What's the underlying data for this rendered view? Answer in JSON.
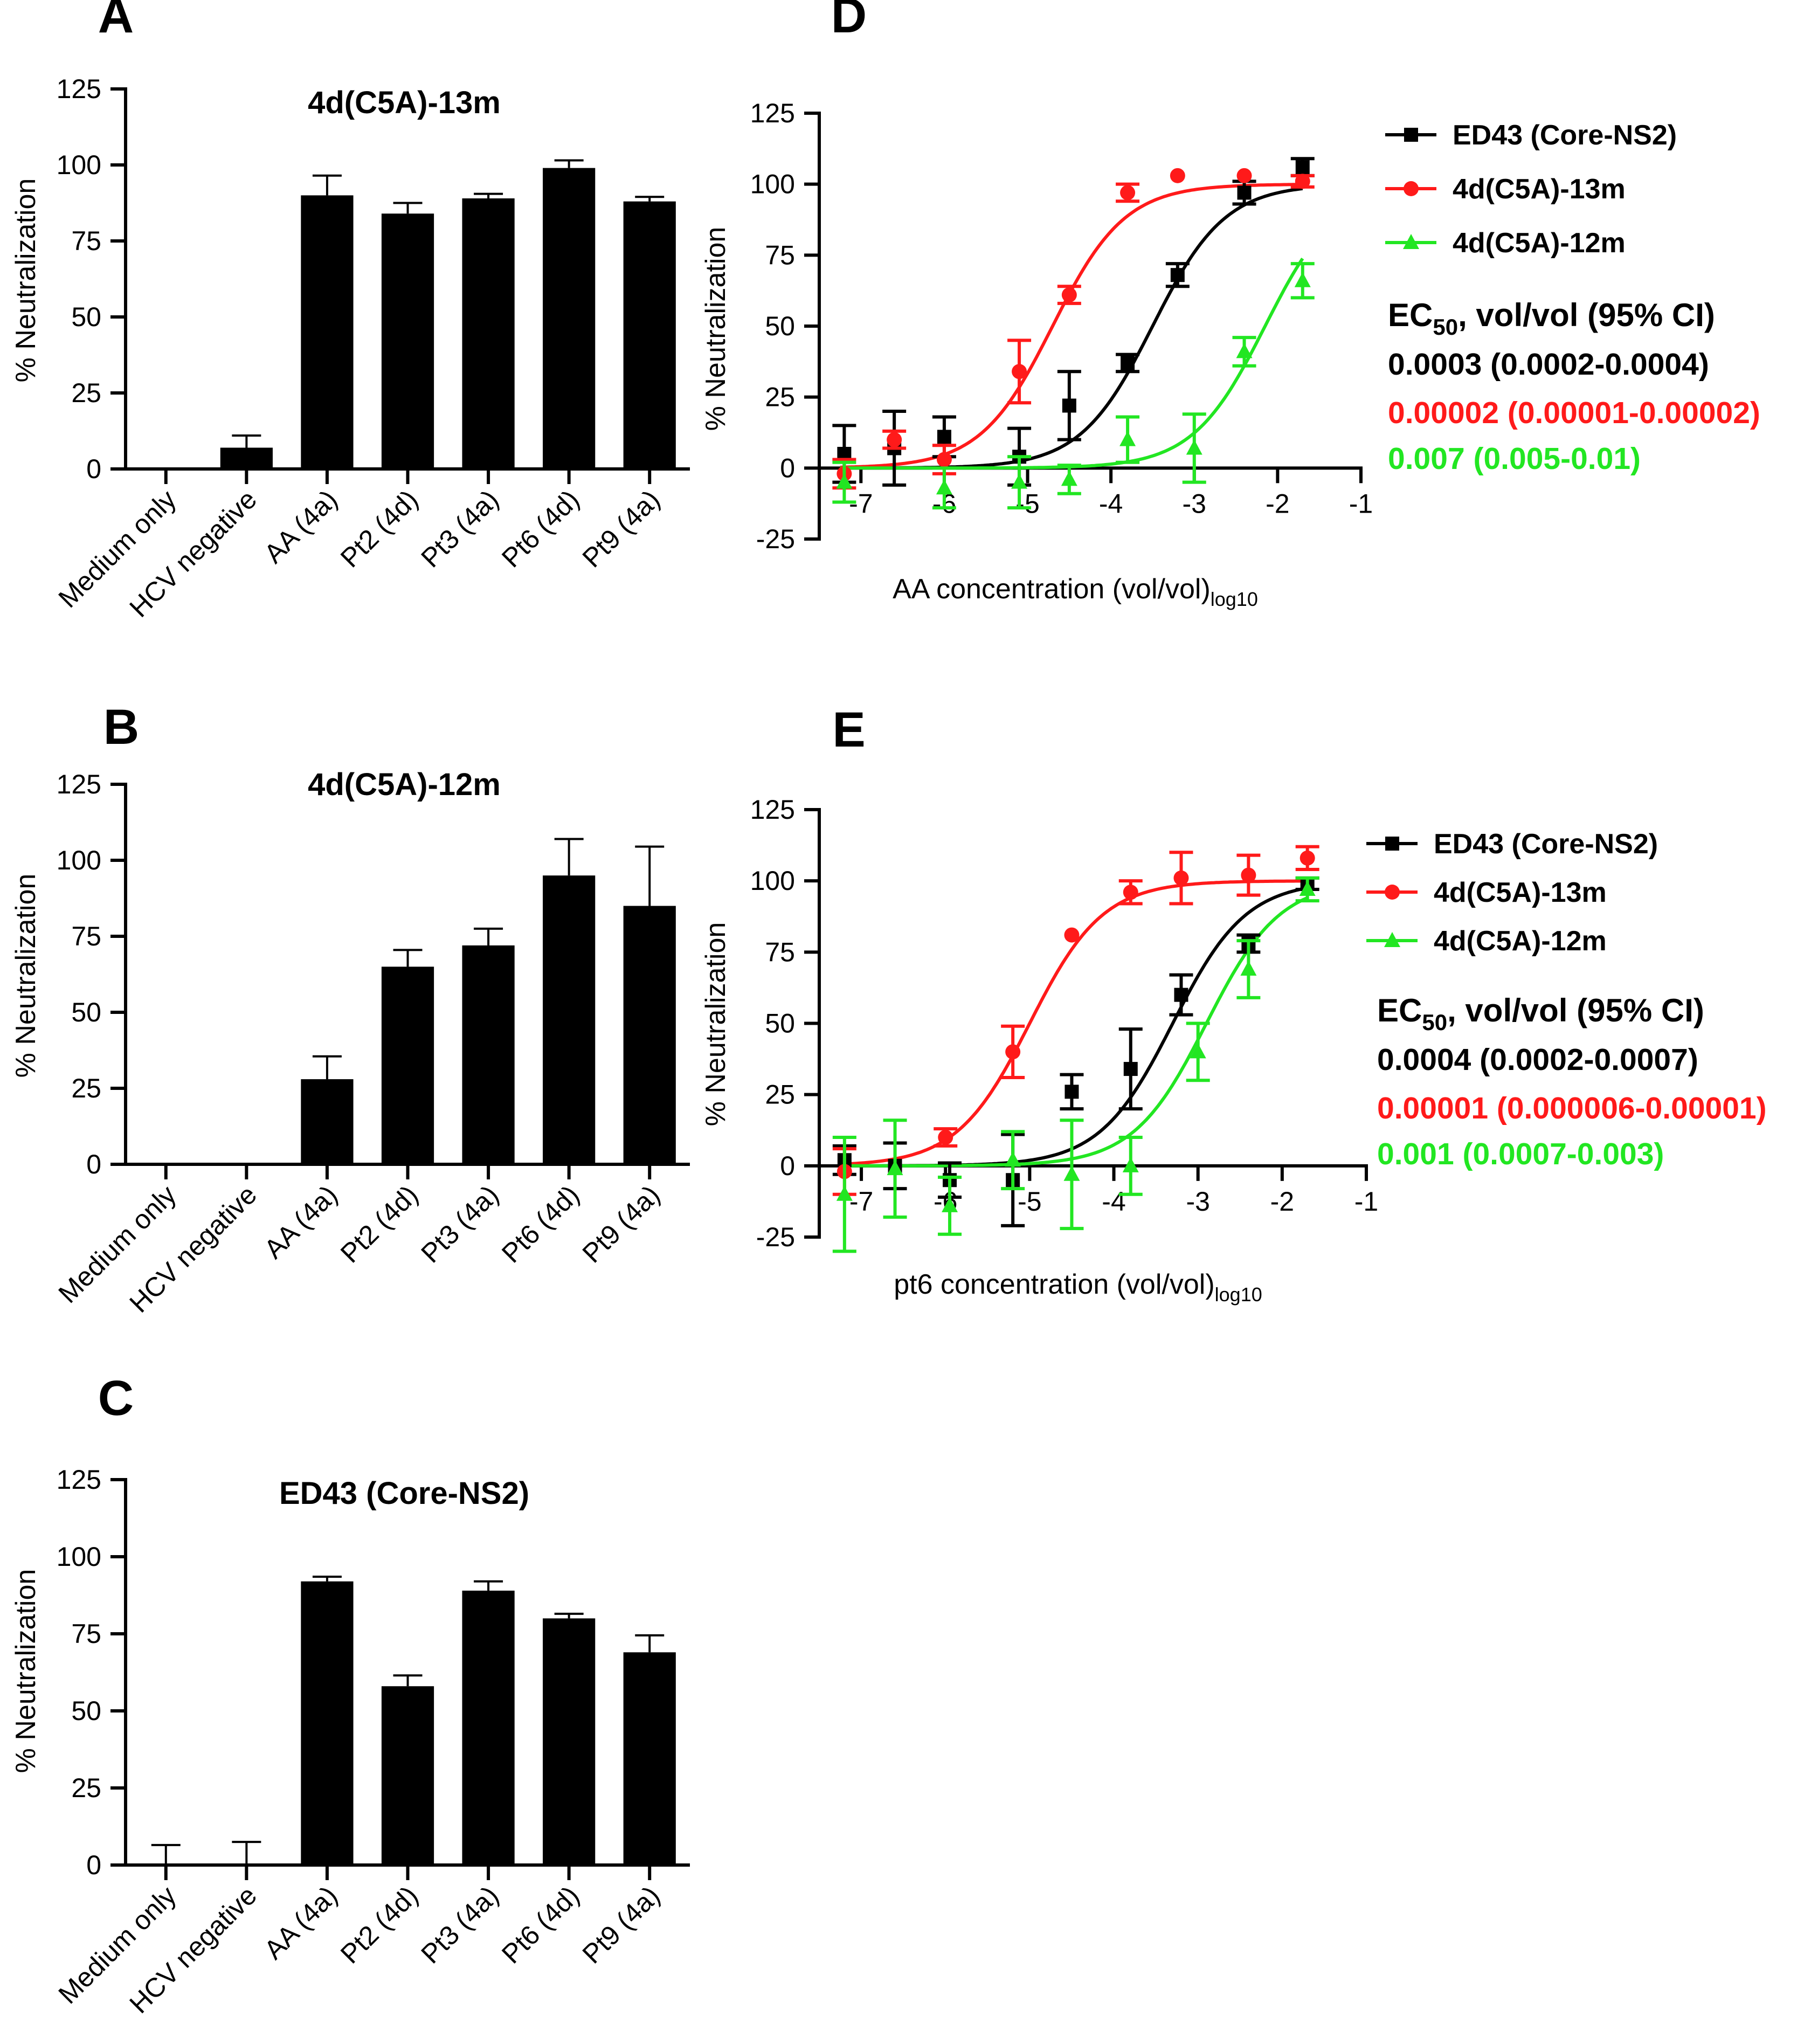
{
  "chart_data": [
    {
      "id": "A",
      "panel_label": "A",
      "type": "bar",
      "title": "4d(C5A)-13m",
      "ylabel": "% Neutralization",
      "ylim": [
        0,
        125
      ],
      "yticks": [
        0,
        25,
        50,
        75,
        100,
        125
      ],
      "categories": [
        "Medium only",
        "HCV negative",
        "AA (4a)",
        "Pt2 (4d)",
        "Pt3 (4a)",
        "Pt6 (4d)",
        "Pt9 (4a)"
      ],
      "values": [
        0,
        7,
        90,
        84,
        89,
        99,
        88
      ],
      "errors": [
        0,
        4,
        6.5,
        3.5,
        1.5,
        2.5,
        1.5
      ]
    },
    {
      "id": "B",
      "panel_label": "B",
      "type": "bar",
      "title": "4d(C5A)-12m",
      "ylabel": "% Neutralization",
      "ylim": [
        0,
        125
      ],
      "yticks": [
        0,
        25,
        50,
        75,
        100,
        125
      ],
      "categories": [
        "Medium only",
        "HCV negative",
        "AA (4a)",
        "Pt2 (4d)",
        "Pt3 (4a)",
        "Pt6 (4d)",
        "Pt9 (4a)"
      ],
      "values": [
        0,
        0,
        28,
        65,
        72,
        95,
        85
      ],
      "errors": [
        0,
        0,
        7.5,
        5.5,
        5.5,
        12,
        19.5
      ]
    },
    {
      "id": "C",
      "panel_label": "C",
      "type": "bar",
      "title": "ED43 (Core-NS2)",
      "ylabel": "% Neutralization",
      "ylim": [
        0,
        125
      ],
      "yticks": [
        0,
        25,
        50,
        75,
        100,
        125
      ],
      "categories": [
        "Medium only",
        "HCV negative",
        "AA (4a)",
        "Pt2 (4d)",
        "Pt3 (4a)",
        "Pt6 (4d)",
        "Pt9 (4a)"
      ],
      "values": [
        0,
        0,
        92,
        58,
        89,
        80,
        69
      ],
      "errors": [
        6.5,
        7.5,
        1.5,
        3.5,
        3,
        1.5,
        5.5
      ]
    },
    {
      "id": "D",
      "panel_label": "D",
      "type": "scatter",
      "xlabel": "AA concentration (vol/vol)",
      "xlabel_sub": "log10",
      "ylabel": "% Neutralization",
      "xlim": [
        -7.5,
        -1
      ],
      "ylim": [
        -25,
        125
      ],
      "xticks": [
        -7,
        -6,
        -5,
        -4,
        -3,
        -2,
        -1
      ],
      "yticks": [
        -25,
        0,
        25,
        50,
        75,
        100,
        125
      ],
      "ec50_heading": "EC",
      "ec50_heading_sub": "50",
      "ec50_heading_rest": ", vol/vol (95% CI)",
      "series": [
        {
          "name": "ED43 (Core-NS2)",
          "color": "#000000",
          "marker": "square",
          "x": [
            -7.2,
            -6.6,
            -6.0,
            -5.1,
            -4.5,
            -3.8,
            -3.2,
            -2.4,
            -1.7
          ],
          "y": [
            5,
            7,
            11,
            4,
            22,
            37,
            68,
            97,
            106
          ],
          "err": [
            10,
            13,
            7,
            10,
            12,
            3,
            4,
            4,
            3
          ],
          "fit": {
            "logEC50": -3.5,
            "bottom": 0,
            "top": 100,
            "hill": 1.0
          },
          "ec50": "0.0003 (0.0002-0.0004)"
        },
        {
          "name": "4d(C5A)-13m",
          "color": "#ff1a1a",
          "marker": "circle",
          "x": [
            -7.2,
            -6.6,
            -6.0,
            -5.1,
            -4.5,
            -3.8,
            -3.2,
            -2.4,
            -1.7
          ],
          "y": [
            -2,
            10,
            3,
            34,
            61,
            97,
            103,
            103,
            101
          ],
          "err": [
            5,
            3,
            5,
            11,
            3,
            3,
            0,
            0,
            2
          ],
          "fit": {
            "logEC50": -4.7,
            "bottom": 0,
            "top": 100,
            "hill": 1.0
          },
          "ec50": "0.00002 (0.00001-0.00002)"
        },
        {
          "name": "4d(C5A)-12m",
          "color": "#22e622",
          "marker": "triangle",
          "x": [
            -7.2,
            -6.0,
            -5.1,
            -4.5,
            -3.8,
            -3.0,
            -2.4,
            -1.7
          ],
          "y": [
            -5,
            -7,
            -5,
            -4,
            10,
            7,
            41,
            66
          ],
          "err": [
            7,
            7,
            9,
            5,
            8,
            12,
            5,
            6
          ],
          "fit": {
            "logEC50": -2.15,
            "bottom": 0,
            "top": 100,
            "hill": 1.0
          },
          "ec50": "0.007 (0.005-0.01)"
        }
      ]
    },
    {
      "id": "E",
      "panel_label": "E",
      "type": "scatter",
      "xlabel": "pt6 concentration (vol/vol)",
      "xlabel_sub": "log10",
      "ylabel": "% Neutralization",
      "xlim": [
        -7.5,
        -1
      ],
      "ylim": [
        -25,
        125
      ],
      "xticks": [
        -7,
        -6,
        -5,
        -4,
        -3,
        -2,
        -1
      ],
      "yticks": [
        -25,
        0,
        25,
        50,
        75,
        100,
        125
      ],
      "ec50_heading": "EC",
      "ec50_heading_sub": "50",
      "ec50_heading_rest": ", vol/vol (95% CI)",
      "series": [
        {
          "name": "ED43 (Core-NS2)",
          "color": "#000000",
          "marker": "square",
          "x": [
            -7.2,
            -6.6,
            -5.95,
            -5.2,
            -4.5,
            -3.8,
            -3.2,
            -2.4,
            -1.7
          ],
          "y": [
            2,
            0,
            -5,
            -5,
            26,
            34,
            60,
            78,
            99
          ],
          "err": [
            5,
            8,
            6,
            16,
            6,
            14,
            7,
            3,
            2
          ],
          "fit": {
            "logEC50": -3.3,
            "bottom": 0,
            "top": 100,
            "hill": 1.0
          },
          "ec50": "0.0004 (0.0002-0.0007)"
        },
        {
          "name": "4d(C5A)-13m",
          "color": "#ff1a1a",
          "marker": "circle",
          "x": [
            -7.2,
            -6.0,
            -5.2,
            -4.5,
            -3.8,
            -3.2,
            -2.4,
            -1.7
          ],
          "y": [
            -2,
            10,
            40,
            81,
            96,
            101,
            102,
            108
          ],
          "err": [
            8,
            3,
            9,
            0,
            4,
            9,
            7,
            4
          ],
          "fit": {
            "logEC50": -5.0,
            "bottom": 0,
            "top": 100,
            "hill": 1.0
          },
          "ec50": "0.00001 (0.000006-0.00001)"
        },
        {
          "name": "4d(C5A)-12m",
          "color": "#22e622",
          "marker": "triangle",
          "x": [
            -7.2,
            -6.6,
            -5.95,
            -5.2,
            -4.5,
            -3.8,
            -3.0,
            -2.4,
            -1.7
          ],
          "y": [
            -10,
            -1,
            -14,
            2,
            -3,
            0,
            40,
            69,
            97
          ],
          "err": [
            20,
            17,
            10,
            10,
            19,
            10,
            10,
            10,
            4
          ],
          "fit": {
            "logEC50": -2.9,
            "bottom": 0,
            "top": 100,
            "hill": 1.0
          },
          "ec50": "0.001 (0.0007-0.003)"
        }
      ]
    }
  ]
}
